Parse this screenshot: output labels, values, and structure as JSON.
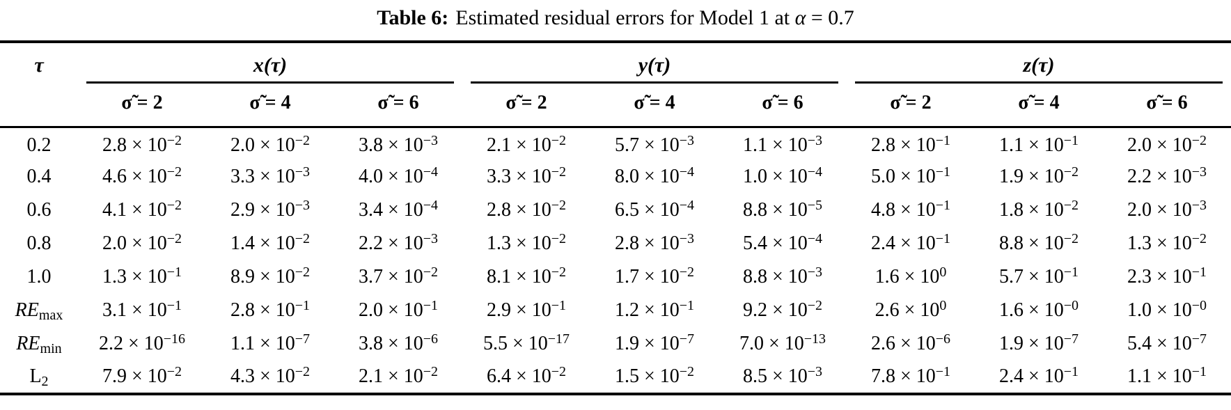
{
  "caption": {
    "label": "Table 6:",
    "text_before_alpha": "Estimated residual errors for Model 1 at ",
    "alpha_symbol": "α",
    "text_after_alpha": " = 0.7"
  },
  "table": {
    "corner_header": "τ",
    "groups": [
      {
        "label": "x(τ)"
      },
      {
        "label": "y(τ)"
      },
      {
        "label": "z(τ)"
      }
    ],
    "subheaders": [
      "σ̃ = 2",
      "σ̃ = 4",
      "σ̃ = 6",
      "σ̃ = 2",
      "σ̃ = 4",
      "σ̃ = 6",
      "σ̃ = 2",
      "σ̃ = 4",
      "σ̃ = 6"
    ],
    "notation": {
      "times": "×",
      "base": "10"
    },
    "rows": [
      {
        "label": {
          "main": "0.2",
          "sub": "",
          "italic": false
        },
        "cells": [
          [
            "2.8",
            "−2"
          ],
          [
            "2.0",
            "−2"
          ],
          [
            "3.8",
            "−3"
          ],
          [
            "2.1",
            "−2"
          ],
          [
            "5.7",
            "−3"
          ],
          [
            "1.1",
            "−3"
          ],
          [
            "2.8",
            "−1"
          ],
          [
            "1.1",
            "−1"
          ],
          [
            "2.0",
            "−2"
          ]
        ]
      },
      {
        "label": {
          "main": "0.4",
          "sub": "",
          "italic": false
        },
        "cells": [
          [
            "4.6",
            "−2"
          ],
          [
            "3.3",
            "−3"
          ],
          [
            "4.0",
            "−4"
          ],
          [
            "3.3",
            "−2"
          ],
          [
            "8.0",
            "−4"
          ],
          [
            "1.0",
            "−4"
          ],
          [
            "5.0",
            "−1"
          ],
          [
            "1.9",
            "−2"
          ],
          [
            "2.2",
            "−3"
          ]
        ]
      },
      {
        "label": {
          "main": "0.6",
          "sub": "",
          "italic": false
        },
        "cells": [
          [
            "4.1",
            "−2"
          ],
          [
            "2.9",
            "−3"
          ],
          [
            "3.4",
            "−4"
          ],
          [
            "2.8",
            "−2"
          ],
          [
            "6.5",
            "−4"
          ],
          [
            "8.8",
            "−5"
          ],
          [
            "4.8",
            "−1"
          ],
          [
            "1.8",
            "−2"
          ],
          [
            "2.0",
            "−3"
          ]
        ]
      },
      {
        "label": {
          "main": "0.8",
          "sub": "",
          "italic": false
        },
        "cells": [
          [
            "2.0",
            "−2"
          ],
          [
            "1.4",
            "−2"
          ],
          [
            "2.2",
            "−3"
          ],
          [
            "1.3",
            "−2"
          ],
          [
            "2.8",
            "−3"
          ],
          [
            "5.4",
            "−4"
          ],
          [
            "2.4",
            "−1"
          ],
          [
            "8.8",
            "−2"
          ],
          [
            "1.3",
            "−2"
          ]
        ]
      },
      {
        "label": {
          "main": "1.0",
          "sub": "",
          "italic": false
        },
        "cells": [
          [
            "1.3",
            "−1"
          ],
          [
            "8.9",
            "−2"
          ],
          [
            "3.7",
            "−2"
          ],
          [
            "8.1",
            "−2"
          ],
          [
            "1.7",
            "−2"
          ],
          [
            "8.8",
            "−3"
          ],
          [
            "1.6",
            "0"
          ],
          [
            "5.7",
            "−1"
          ],
          [
            "2.3",
            "−1"
          ]
        ]
      },
      {
        "label": {
          "main": "RE",
          "sub": "max",
          "italic": true
        },
        "cells": [
          [
            "3.1",
            "−1"
          ],
          [
            "2.8",
            "−1"
          ],
          [
            "2.0",
            "−1"
          ],
          [
            "2.9",
            "−1"
          ],
          [
            "1.2",
            "−1"
          ],
          [
            "9.2",
            "−2"
          ],
          [
            "2.6",
            "0"
          ],
          [
            "1.6",
            "−0"
          ],
          [
            "1.0",
            "−0"
          ]
        ]
      },
      {
        "label": {
          "main": "RE",
          "sub": "min",
          "italic": true
        },
        "cells": [
          [
            "2.2",
            "−16"
          ],
          [
            "1.1",
            "−7"
          ],
          [
            "3.8",
            "−6"
          ],
          [
            "5.5",
            "−17"
          ],
          [
            "1.9",
            "−7"
          ],
          [
            "7.0",
            "−13"
          ],
          [
            "2.6",
            "−6"
          ],
          [
            "1.9",
            "−7"
          ],
          [
            "5.4",
            "−7"
          ]
        ]
      },
      {
        "label": {
          "main": "L",
          "sub": "2",
          "italic": false
        },
        "cells": [
          [
            "7.9",
            "−2"
          ],
          [
            "4.3",
            "−2"
          ],
          [
            "2.1",
            "−2"
          ],
          [
            "6.4",
            "−2"
          ],
          [
            "1.5",
            "−2"
          ],
          [
            "8.5",
            "−3"
          ],
          [
            "7.8",
            "−1"
          ],
          [
            "2.4",
            "−1"
          ],
          [
            "1.1",
            "−1"
          ]
        ]
      }
    ]
  }
}
